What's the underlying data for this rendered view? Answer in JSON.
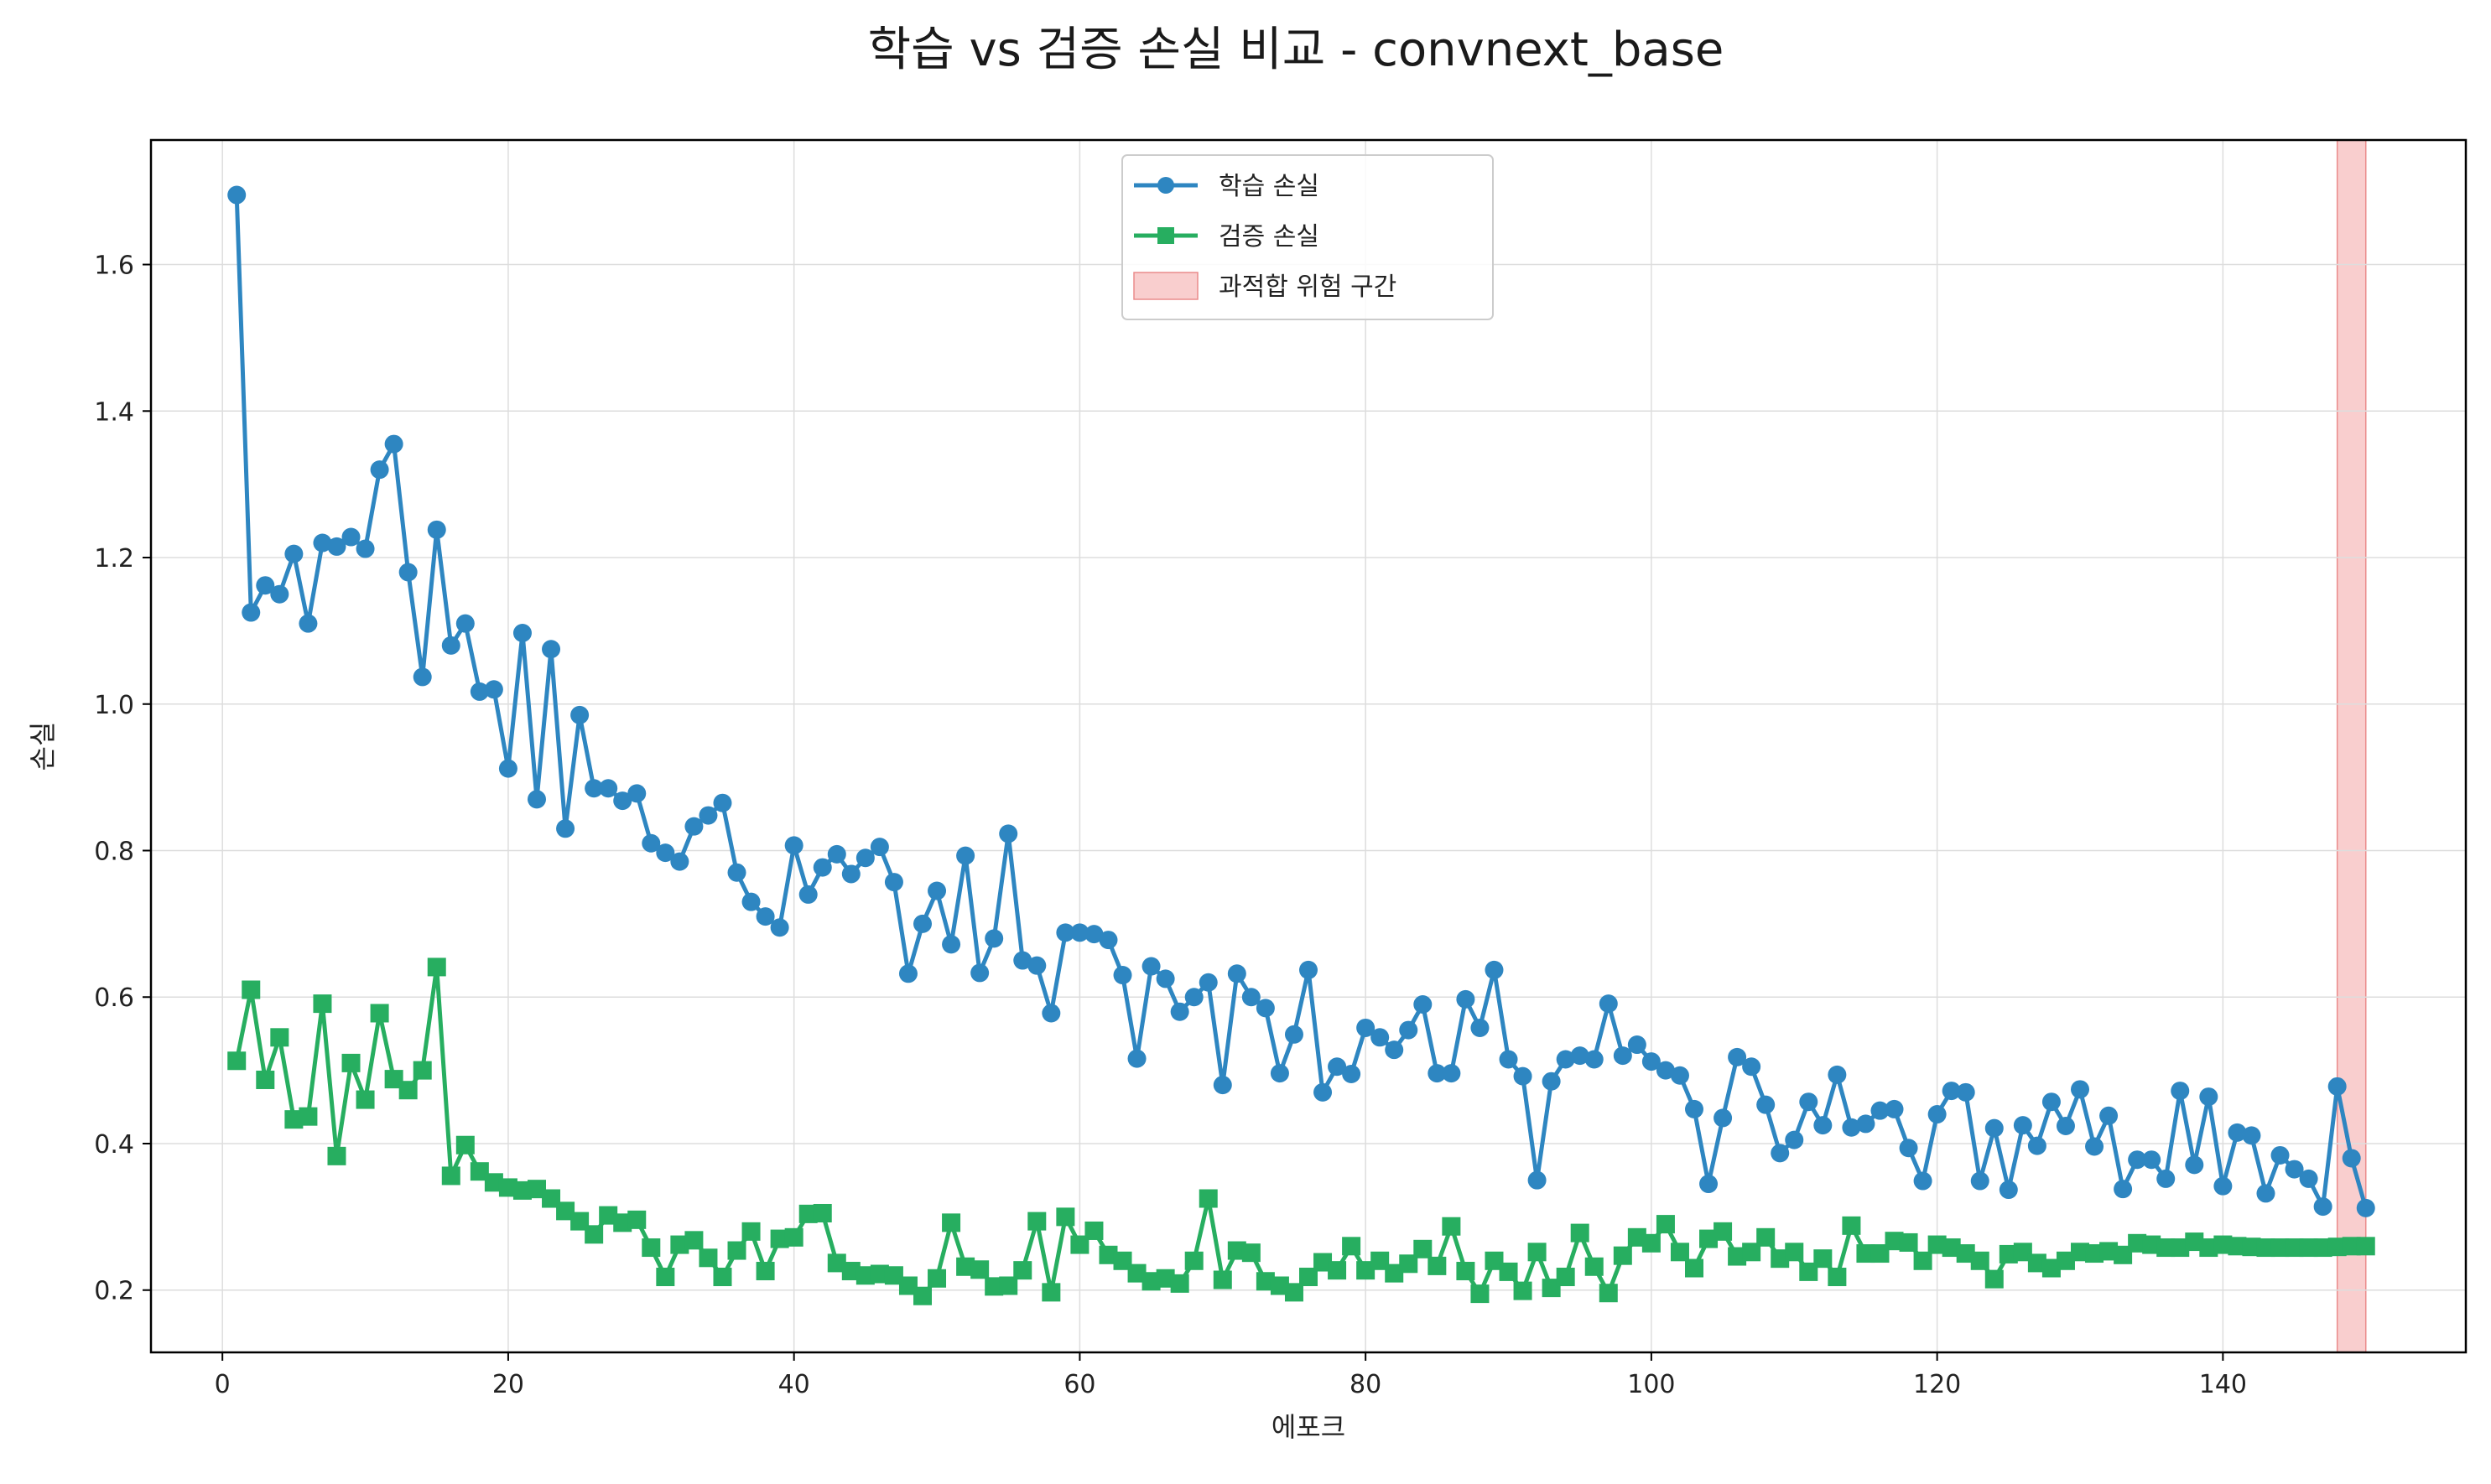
{
  "chart_data": {
    "type": "line",
    "title": "학습 vs 검증 손실 비교 - convnext_base",
    "xlabel": "에포크",
    "ylabel": "손실",
    "xlim": [
      -5,
      157
    ],
    "ylim": [
      0.115,
      1.77
    ],
    "xticks": [
      0,
      20,
      40,
      60,
      80,
      100,
      120,
      140
    ],
    "yticks": [
      0.2,
      0.4,
      0.6,
      0.8,
      1.0,
      1.2,
      1.4,
      1.6
    ],
    "grid": true,
    "legend_position": "top-center",
    "series": [
      {
        "name": "학습 손실",
        "color": "#2e86c1",
        "marker": "circle",
        "x": [
          1,
          2,
          3,
          4,
          5,
          6,
          7,
          8,
          9,
          10,
          11,
          12,
          13,
          14,
          15,
          16,
          17,
          18,
          19,
          20,
          21,
          22,
          23,
          24,
          25,
          26,
          27,
          28,
          29,
          30,
          31,
          32,
          33,
          34,
          35,
          36,
          37,
          38,
          39,
          40,
          41,
          42,
          43,
          44,
          45,
          46,
          47,
          48,
          49,
          50,
          51,
          52,
          53,
          54,
          55,
          56,
          57,
          58,
          59,
          60,
          61,
          62,
          63,
          64,
          65,
          66,
          67,
          68,
          69,
          70,
          71,
          72,
          73,
          74,
          75,
          76,
          77,
          78,
          79,
          80,
          81,
          82,
          83,
          84,
          85,
          86,
          87,
          88,
          89,
          90,
          91,
          92,
          93,
          94,
          95,
          96,
          97,
          98,
          99,
          100,
          101,
          102,
          103,
          104,
          105,
          106,
          107,
          108,
          109,
          110,
          111,
          112,
          113,
          114,
          115,
          116,
          117,
          118,
          119,
          120,
          121,
          122,
          123,
          124,
          125,
          126,
          127,
          128,
          129,
          130,
          131,
          132,
          133,
          134,
          135,
          136,
          137,
          138,
          139,
          140,
          141,
          142,
          143,
          144,
          145,
          146,
          147,
          148,
          149,
          150
        ],
        "values": [
          1.695,
          1.125,
          1.162,
          1.15,
          1.205,
          1.11,
          1.22,
          1.215,
          1.228,
          1.212,
          1.32,
          1.355,
          1.18,
          1.037,
          1.238,
          1.08,
          1.11,
          1.017,
          1.02,
          0.912,
          1.097,
          0.87,
          1.075,
          0.83,
          0.985,
          0.885,
          0.885,
          0.868,
          0.878,
          0.81,
          0.797,
          0.785,
          0.833,
          0.848,
          0.865,
          0.77,
          0.73,
          0.71,
          0.695,
          0.807,
          0.74,
          0.777,
          0.795,
          0.768,
          0.79,
          0.805,
          0.757,
          0.632,
          0.7,
          0.745,
          0.672,
          0.793,
          0.633,
          0.68,
          0.823,
          0.65,
          0.643,
          0.578,
          0.688,
          0.688,
          0.686,
          0.678,
          0.63,
          0.516,
          0.642,
          0.625,
          0.58,
          0.6,
          0.62,
          0.48,
          0.632,
          0.6,
          0.585,
          0.496,
          0.549,
          0.637,
          0.47,
          0.505,
          0.495,
          0.558,
          0.545,
          0.528,
          0.555,
          0.59,
          0.496,
          0.496,
          0.597,
          0.558,
          0.637,
          0.515,
          0.492,
          0.35,
          0.485,
          0.515,
          0.52,
          0.515,
          0.591,
          0.52,
          0.535,
          0.512,
          0.5,
          0.493,
          0.447,
          0.345,
          0.435,
          0.518,
          0.505,
          0.453,
          0.387,
          0.405,
          0.457,
          0.425,
          0.494,
          0.422,
          0.427,
          0.445,
          0.447,
          0.394,
          0.349,
          0.44,
          0.472,
          0.47,
          0.349,
          0.421,
          0.337,
          0.425,
          0.397,
          0.457,
          0.424,
          0.474,
          0.396,
          0.438,
          0.338,
          0.378,
          0.378,
          0.352,
          0.472,
          0.371,
          0.464,
          0.342,
          0.415,
          0.411,
          0.332,
          0.384,
          0.365,
          0.352,
          0.314,
          0.478,
          0.38,
          0.312
        ]
      },
      {
        "name": "검증 손실",
        "color": "#27ae60",
        "marker": "square",
        "x": [
          1,
          2,
          3,
          4,
          5,
          6,
          7,
          8,
          9,
          10,
          11,
          12,
          13,
          14,
          15,
          16,
          17,
          18,
          19,
          20,
          21,
          22,
          23,
          24,
          25,
          26,
          27,
          28,
          29,
          30,
          31,
          32,
          33,
          34,
          35,
          36,
          37,
          38,
          39,
          40,
          41,
          42,
          43,
          44,
          45,
          46,
          47,
          48,
          49,
          50,
          51,
          52,
          53,
          54,
          55,
          56,
          57,
          58,
          59,
          60,
          61,
          62,
          63,
          64,
          65,
          66,
          67,
          68,
          69,
          70,
          71,
          72,
          73,
          74,
          75,
          76,
          77,
          78,
          79,
          80,
          81,
          82,
          83,
          84,
          85,
          86,
          87,
          88,
          89,
          90,
          91,
          92,
          93,
          94,
          95,
          96,
          97,
          98,
          99,
          100,
          101,
          102,
          103,
          104,
          105,
          106,
          107,
          108,
          109,
          110,
          111,
          112,
          113,
          114,
          115,
          116,
          117,
          118,
          119,
          120,
          121,
          122,
          123,
          124,
          125,
          126,
          127,
          128,
          129,
          130,
          131,
          132,
          133,
          134,
          135,
          136,
          137,
          138,
          139,
          140,
          141,
          142,
          143,
          144,
          145,
          146,
          147,
          148,
          149,
          150
        ],
        "values": [
          0.513,
          0.61,
          0.487,
          0.545,
          0.433,
          0.437,
          0.591,
          0.383,
          0.51,
          0.46,
          0.578,
          0.488,
          0.473,
          0.5,
          0.641,
          0.356,
          0.398,
          0.362,
          0.347,
          0.34,
          0.336,
          0.338,
          0.325,
          0.308,
          0.294,
          0.276,
          0.302,
          0.292,
          0.296,
          0.258,
          0.218,
          0.262,
          0.268,
          0.244,
          0.218,
          0.254,
          0.28,
          0.226,
          0.27,
          0.272,
          0.304,
          0.305,
          0.237,
          0.226,
          0.22,
          0.222,
          0.22,
          0.206,
          0.192,
          0.216,
          0.292,
          0.232,
          0.228,
          0.205,
          0.206,
          0.227,
          0.294,
          0.197,
          0.3,
          0.262,
          0.281,
          0.248,
          0.24,
          0.223,
          0.212,
          0.216,
          0.209,
          0.24,
          0.325,
          0.214,
          0.254,
          0.251,
          0.212,
          0.206,
          0.197,
          0.218,
          0.238,
          0.227,
          0.26,
          0.227,
          0.24,
          0.223,
          0.236,
          0.256,
          0.233,
          0.287,
          0.226,
          0.195,
          0.24,
          0.225,
          0.199,
          0.252,
          0.203,
          0.218,
          0.278,
          0.232,
          0.196,
          0.247,
          0.272,
          0.264,
          0.29,
          0.252,
          0.23,
          0.27,
          0.28,
          0.246,
          0.252,
          0.272,
          0.243,
          0.252,
          0.225,
          0.243,
          0.218,
          0.288,
          0.25,
          0.25,
          0.267,
          0.265,
          0.24,
          0.262,
          0.258,
          0.25,
          0.24,
          0.215,
          0.249,
          0.252,
          0.237,
          0.23,
          0.24,
          0.252,
          0.25,
          0.253,
          0.248,
          0.264,
          0.262,
          0.258,
          0.258,
          0.266,
          0.258,
          0.262,
          0.26,
          0.259,
          0.258,
          0.258,
          0.258,
          0.258,
          0.258,
          0.259,
          0.26,
          0.26
        ]
      }
    ],
    "highlight_band": {
      "name": "과적합 위험 구간",
      "x_start": 148,
      "x_end": 150,
      "color": "#f4a6a6"
    }
  }
}
